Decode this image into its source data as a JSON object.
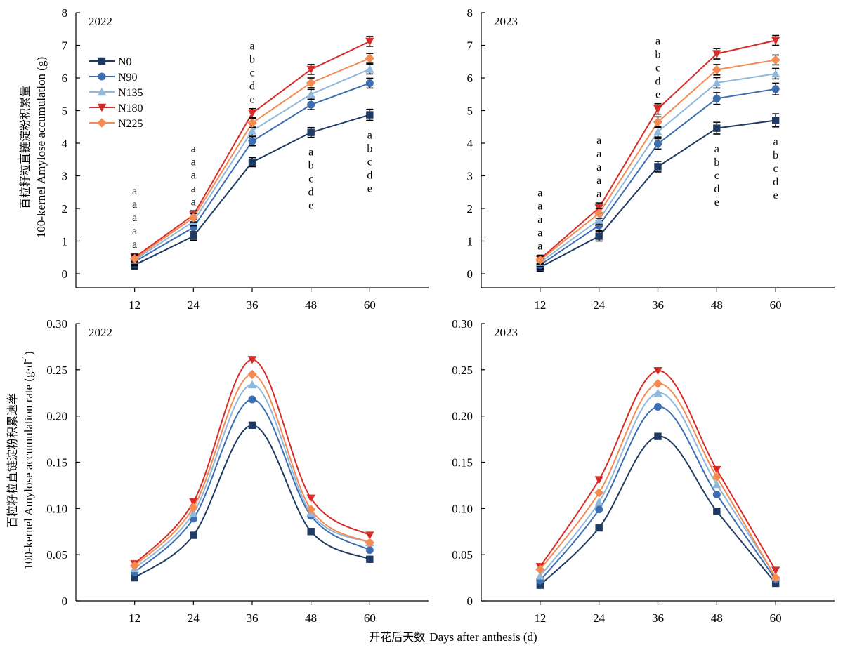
{
  "figure": {
    "xlabel_cn": "开花后天数",
    "xlabel_en": "Days after anthesis (d)",
    "top_ylabel_cn": "百粒籽粒直链淀粉积累量",
    "top_ylabel_en": "100-kernel Amylose accumulation (g)",
    "bottom_ylabel_cn": "百粒籽粒直链淀粉积累速率",
    "bottom_ylabel_en_main": "100-kernel Amylose accumulation rate (g·d",
    "bottom_ylabel_en_sup": "-1",
    "bottom_ylabel_en_end": ")"
  },
  "legend": [
    {
      "name": "N0",
      "color": "#1f3b63",
      "marker": "square"
    },
    {
      "name": "N90",
      "color": "#3c6db0",
      "marker": "circle"
    },
    {
      "name": "N135",
      "color": "#8fb8dc",
      "marker": "triangle-up"
    },
    {
      "name": "N180",
      "color": "#d62b27",
      "marker": "triangle-down"
    },
    {
      "name": "N225",
      "color": "#f38b52",
      "marker": "diamond"
    }
  ],
  "chart_data": [
    {
      "type": "line",
      "panel": "2022",
      "x": [
        12,
        24,
        36,
        48,
        60
      ],
      "xlim": [
        0,
        72
      ],
      "ylim": [
        -0.6,
        8
      ],
      "yticks": [
        0,
        1,
        2,
        3,
        4,
        5,
        6,
        7,
        8
      ],
      "xticks": [
        12,
        24,
        36,
        48,
        60
      ],
      "series": [
        {
          "name": "N0",
          "values": [
            0.27,
            1.15,
            3.42,
            4.33,
            4.87
          ],
          "errors": [
            0.12,
            0.13,
            0.14,
            0.15,
            0.17
          ]
        },
        {
          "name": "N90",
          "values": [
            0.37,
            1.42,
            4.06,
            5.18,
            5.84
          ],
          "errors": [
            0.12,
            0.13,
            0.14,
            0.15,
            0.15
          ]
        },
        {
          "name": "N135",
          "values": [
            0.42,
            1.6,
            4.38,
            5.5,
            6.27
          ],
          "errors": [
            0.12,
            0.13,
            0.14,
            0.15,
            0.15
          ]
        },
        {
          "name": "N180",
          "values": [
            0.5,
            1.8,
            4.92,
            6.26,
            7.12
          ],
          "errors": [
            0.12,
            0.13,
            0.14,
            0.15,
            0.15
          ]
        },
        {
          "name": "N225",
          "values": [
            0.46,
            1.72,
            4.62,
            5.85,
            6.6
          ],
          "errors": [
            0.12,
            0.13,
            0.14,
            0.15,
            0.15
          ]
        }
      ],
      "letters": [
        {
          "x": 12,
          "position": "above",
          "labels": [
            "a",
            "a",
            "a",
            "a",
            "a"
          ]
        },
        {
          "x": 24,
          "position": "above",
          "labels": [
            "a",
            "a",
            "a",
            "a",
            "a"
          ]
        },
        {
          "x": 36,
          "position": "above",
          "labels": [
            "a",
            "b",
            "c",
            "d",
            "e"
          ]
        },
        {
          "x": 48,
          "position": "below",
          "labels": [
            "a",
            "b",
            "c",
            "d",
            "e"
          ]
        },
        {
          "x": 60,
          "position": "below",
          "labels": [
            "a",
            "b",
            "c",
            "d",
            "e"
          ]
        }
      ]
    },
    {
      "type": "line",
      "panel": "2023",
      "x": [
        12,
        24,
        36,
        48,
        60
      ],
      "xlim": [
        0,
        72
      ],
      "ylim": [
        -0.6,
        8
      ],
      "yticks": [
        0,
        1,
        2,
        3,
        4,
        5,
        6,
        7,
        8
      ],
      "xticks": [
        12,
        24,
        36,
        48,
        60
      ],
      "series": [
        {
          "name": "N0",
          "values": [
            0.2,
            1.15,
            3.28,
            4.46,
            4.7
          ],
          "errors": [
            0.12,
            0.15,
            0.16,
            0.18,
            0.2
          ]
        },
        {
          "name": "N90",
          "values": [
            0.27,
            1.48,
            3.98,
            5.37,
            5.66
          ],
          "errors": [
            0.12,
            0.15,
            0.16,
            0.18,
            0.18
          ]
        },
        {
          "name": "N135",
          "values": [
            0.35,
            1.65,
            4.35,
            5.85,
            6.13
          ],
          "errors": [
            0.12,
            0.15,
            0.16,
            0.16,
            0.16
          ]
        },
        {
          "name": "N180",
          "values": [
            0.45,
            2.02,
            5.05,
            6.74,
            7.15
          ],
          "errors": [
            0.12,
            0.15,
            0.16,
            0.16,
            0.15
          ]
        },
        {
          "name": "N225",
          "values": [
            0.42,
            1.85,
            4.65,
            6.25,
            6.55
          ],
          "errors": [
            0.12,
            0.15,
            0.16,
            0.16,
            0.15
          ]
        }
      ],
      "letters": [
        {
          "x": 12,
          "position": "above",
          "labels": [
            "a",
            "a",
            "a",
            "a",
            "a"
          ]
        },
        {
          "x": 24,
          "position": "above",
          "labels": [
            "a",
            "a",
            "a",
            "a",
            "a"
          ]
        },
        {
          "x": 36,
          "position": "above",
          "labels": [
            "a",
            "b",
            "c",
            "d",
            "e"
          ]
        },
        {
          "x": 48,
          "position": "below",
          "labels": [
            "a",
            "b",
            "c",
            "d",
            "e"
          ]
        },
        {
          "x": 60,
          "position": "below",
          "labels": [
            "a",
            "b",
            "c",
            "d",
            "e"
          ]
        }
      ]
    },
    {
      "type": "line",
      "panel": "2022",
      "x": [
        12,
        24,
        36,
        48,
        60
      ],
      "xlim": [
        0,
        72
      ],
      "ylim": [
        0,
        0.3
      ],
      "yticks": [
        0,
        0.05,
        0.1,
        0.15,
        0.2,
        0.25,
        0.3
      ],
      "ytick_labels": [
        "0",
        "0.05",
        "0.10",
        "0.15",
        "0.20",
        "0.25",
        "0.30"
      ],
      "xticks": [
        12,
        24,
        36,
        48,
        60
      ],
      "series": [
        {
          "name": "N0",
          "values": [
            0.025,
            0.071,
            0.19,
            0.075,
            0.045
          ]
        },
        {
          "name": "N90",
          "values": [
            0.031,
            0.089,
            0.218,
            0.092,
            0.055
          ]
        },
        {
          "name": "N135",
          "values": [
            0.035,
            0.095,
            0.234,
            0.095,
            0.063
          ]
        },
        {
          "name": "N180",
          "values": [
            0.04,
            0.107,
            0.261,
            0.111,
            0.071
          ]
        },
        {
          "name": "N225",
          "values": [
            0.038,
            0.101,
            0.245,
            0.099,
            0.063
          ]
        }
      ]
    },
    {
      "type": "line",
      "panel": "2023",
      "x": [
        12,
        24,
        36,
        48,
        60
      ],
      "xlim": [
        0,
        72
      ],
      "ylim": [
        0,
        0.3
      ],
      "yticks": [
        0,
        0.05,
        0.1,
        0.15,
        0.2,
        0.25,
        0.3
      ],
      "ytick_labels": [
        "0",
        "0.05",
        "0.10",
        "0.15",
        "0.20",
        "0.25",
        "0.30"
      ],
      "xticks": [
        12,
        24,
        36,
        48,
        60
      ],
      "series": [
        {
          "name": "N0",
          "values": [
            0.017,
            0.079,
            0.178,
            0.097,
            0.019
          ]
        },
        {
          "name": "N90",
          "values": [
            0.022,
            0.099,
            0.21,
            0.115,
            0.023
          ]
        },
        {
          "name": "N135",
          "values": [
            0.027,
            0.107,
            0.225,
            0.126,
            0.026
          ]
        },
        {
          "name": "N180",
          "values": [
            0.037,
            0.131,
            0.249,
            0.142,
            0.033
          ]
        },
        {
          "name": "N225",
          "values": [
            0.034,
            0.117,
            0.235,
            0.134,
            0.025
          ]
        }
      ]
    }
  ]
}
